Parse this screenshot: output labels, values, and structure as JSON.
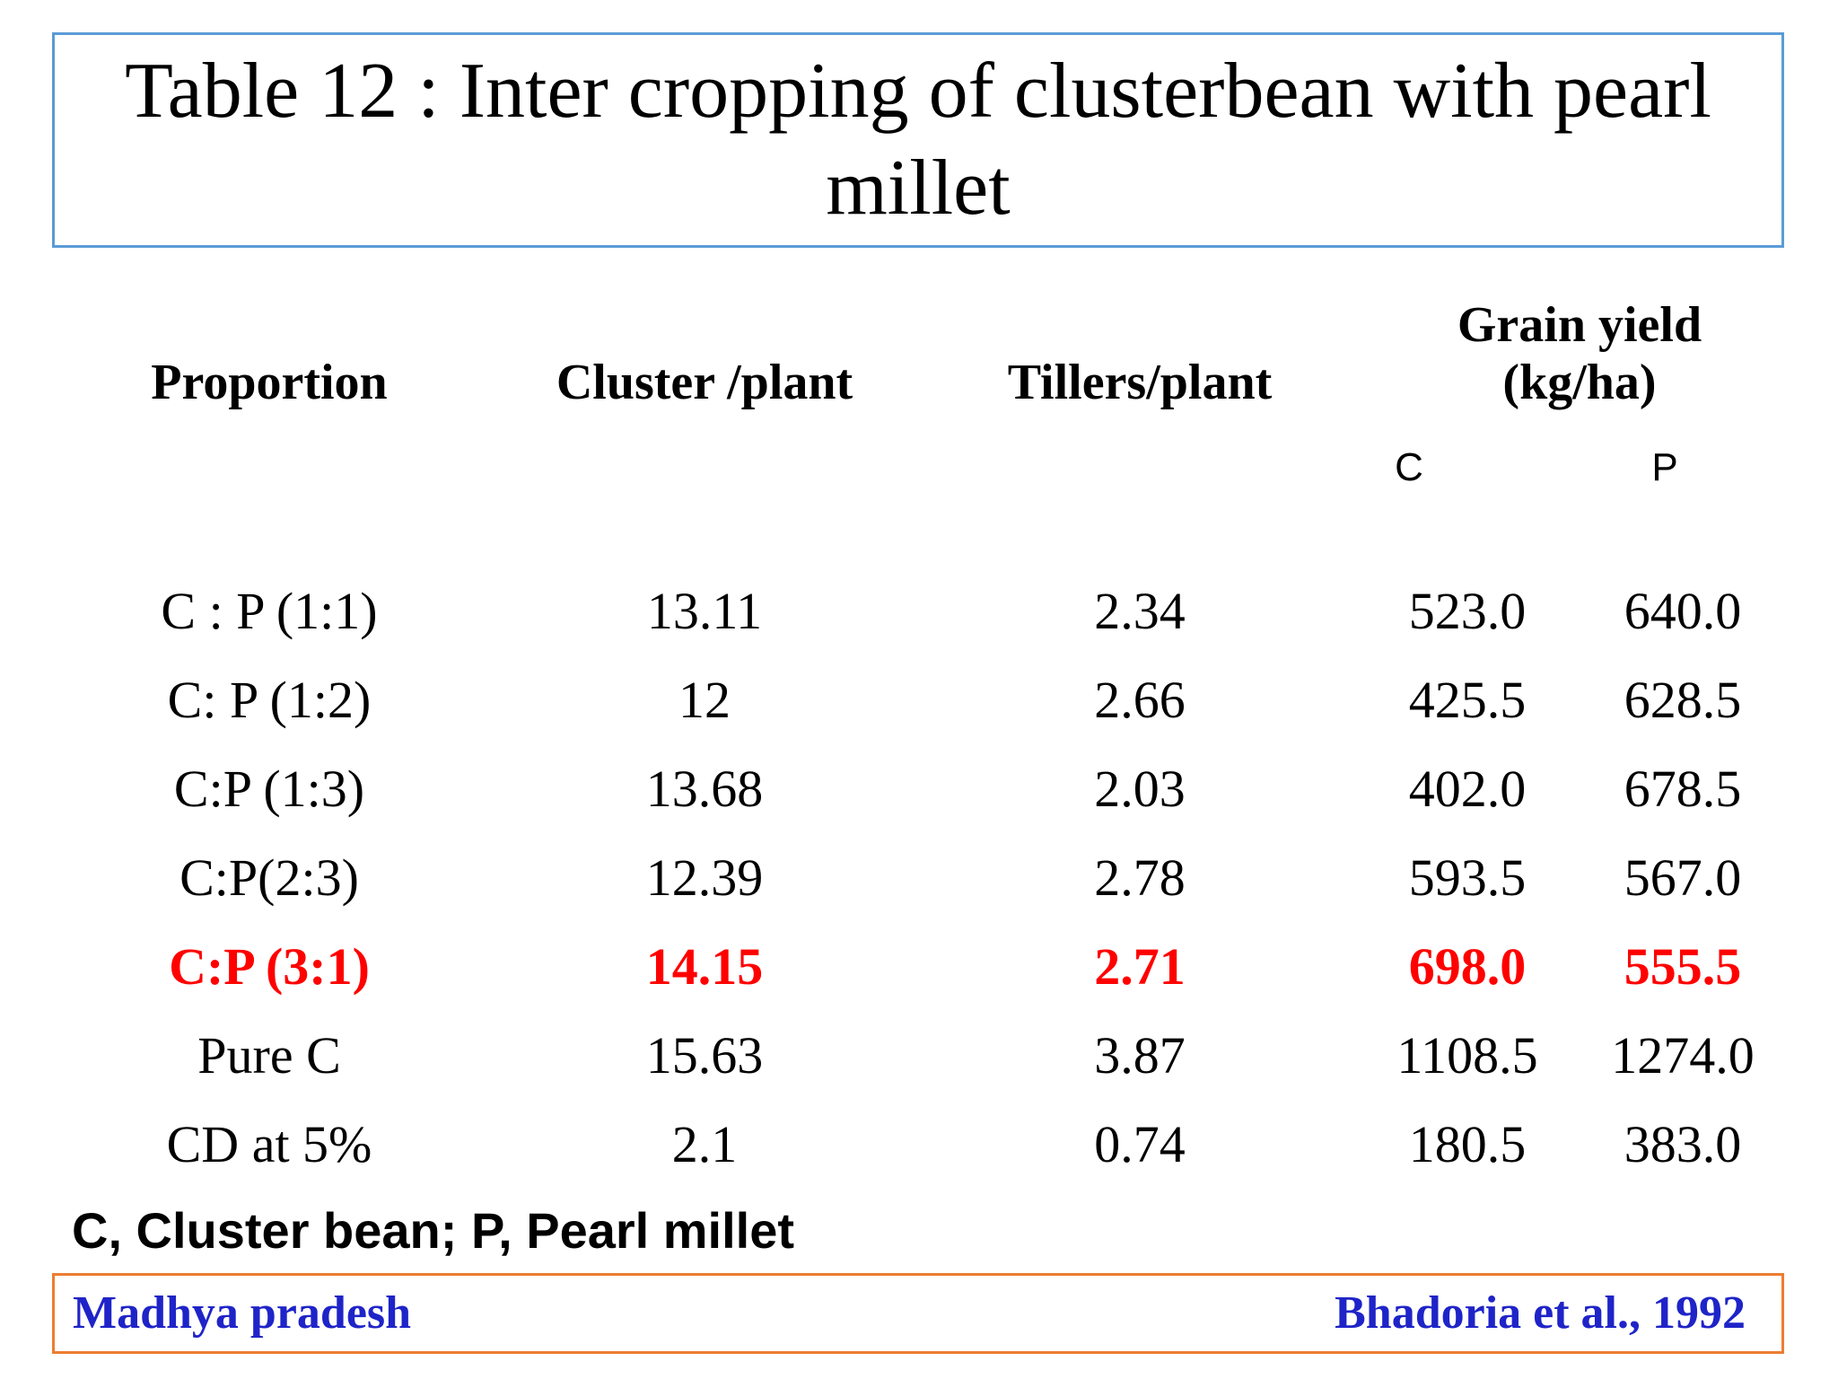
{
  "title": "Table 12 : Inter cropping of clusterbean with pearl millet",
  "table": {
    "headers": {
      "proportion": "Proportion",
      "cluster": "Cluster /plant",
      "tillers": "Tillers/plant",
      "grain_yield_line1": "Grain yield",
      "grain_yield_line2": "(kg/ha)",
      "sub_c": "C",
      "sub_p": "P"
    },
    "rows": [
      {
        "proportion": "C : P (1:1)",
        "cluster": "13.11",
        "tillers": "2.34",
        "yield_c": "523.0",
        "yield_p": "640.0"
      },
      {
        "proportion": "C: P (1:2)",
        "cluster": "12",
        "tillers": "2.66",
        "yield_c": "425.5",
        "yield_p": "628.5"
      },
      {
        "proportion": "C:P (1:3)",
        "cluster": "13.68",
        "tillers": "2.03",
        "yield_c": "402.0",
        "yield_p": "678.5"
      },
      {
        "proportion": "C:P(2:3)",
        "cluster": "12.39",
        "tillers": "2.78",
        "yield_c": "593.5",
        "yield_p": "567.0"
      },
      {
        "proportion": "C:P (3:1)",
        "cluster": "14.15",
        "tillers": "2.71",
        "yield_c": "698.0",
        "yield_p": "555.5"
      },
      {
        "proportion": "Pure C",
        "cluster": "15.63",
        "tillers": "3.87",
        "yield_c": "1108.5",
        "yield_p": "1274.0"
      },
      {
        "proportion": "CD at 5%",
        "cluster": "2.1",
        "tillers": "0.74",
        "yield_c": "180.5",
        "yield_p": "383.0"
      }
    ]
  },
  "abbreviations": "C, Cluster bean; P, Pearl millet",
  "footer": {
    "location": "Madhya pradesh",
    "citation": "Bhadoria et al., 1992"
  },
  "colors": {
    "title_border": "#5b9bd5",
    "footer_border": "#ed7d31",
    "highlight": "#ff0000",
    "footer_text": "#1f24c8"
  }
}
